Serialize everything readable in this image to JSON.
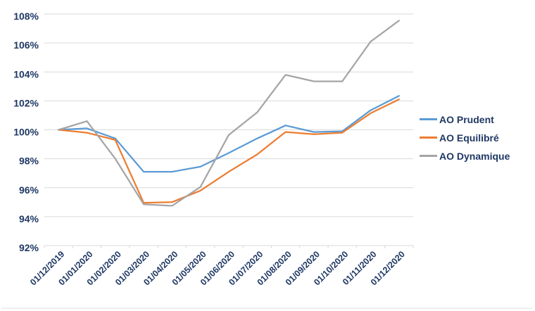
{
  "chart_data": {
    "type": "line",
    "title": "",
    "xlabel": "",
    "ylabel": "",
    "categories": [
      "01/12/2019",
      "01/01/2020",
      "01/02/2020",
      "01/03/2020",
      "01/04/2020",
      "01/05/2020",
      "01/06/2020",
      "01/07/2020",
      "01/08/2020",
      "01/09/2020",
      "01/10/2020",
      "01/11/2020",
      "01/12/2020"
    ],
    "series": [
      {
        "name": "AO Prudent",
        "color": "#5B9BD5",
        "values": [
          100,
          100.1,
          99.4,
          97.1,
          97.1,
          97.45,
          98.4,
          99.4,
          100.3,
          99.85,
          99.9,
          101.35,
          102.35
        ]
      },
      {
        "name": "AO Equilibré",
        "color": "#ED7D31",
        "values": [
          100,
          99.8,
          99.3,
          94.95,
          95.0,
          95.8,
          97.1,
          98.3,
          99.85,
          99.7,
          99.8,
          101.15,
          102.1
        ]
      },
      {
        "name": "AO Dynamique",
        "color": "#A5A5A5",
        "values": [
          100,
          100.6,
          98.0,
          94.85,
          94.75,
          96.05,
          99.65,
          101.2,
          103.8,
          103.35,
          103.35,
          106.1,
          107.55
        ]
      }
    ],
    "ylim": [
      92,
      108
    ],
    "y_tick_step": 2,
    "y_tick_labels": [
      "92%",
      "94%",
      "96%",
      "98%",
      "100%",
      "102%",
      "104%",
      "106%",
      "108%"
    ],
    "grid": true,
    "legend_position": "right"
  },
  "style": {
    "axis_text_color": "#1F3864",
    "gridline_color": "#D9D9D9",
    "tick_color": "#D9D9D9",
    "bottom_rule_color": "#EFEFEF",
    "line_width": 2.25
  }
}
